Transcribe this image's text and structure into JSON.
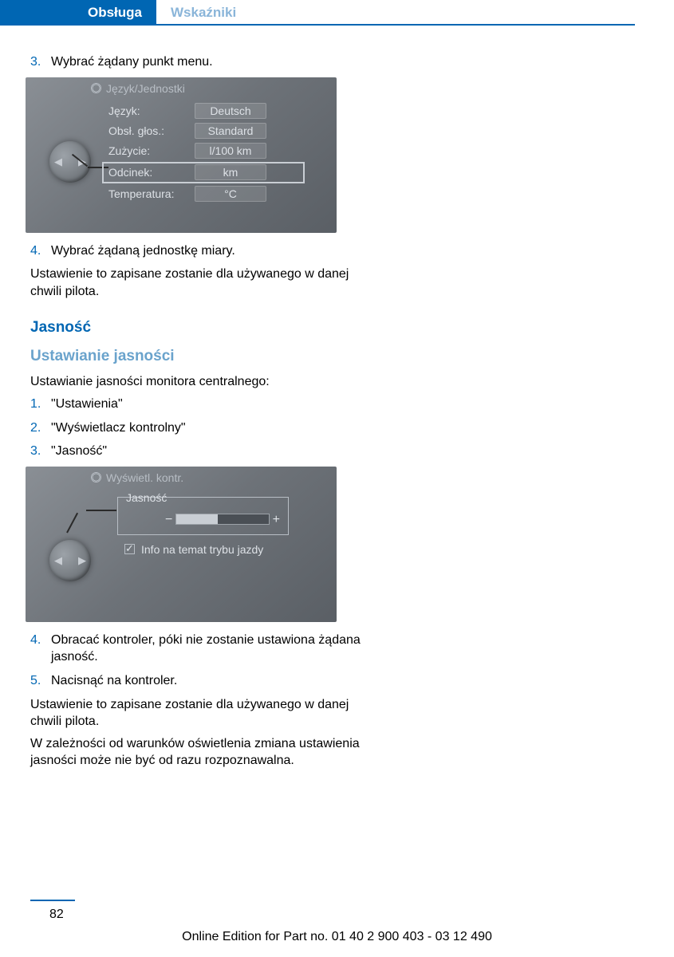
{
  "header": {
    "tab_active": "Obsługa",
    "tab_inactive": "Wskaźniki"
  },
  "step3": {
    "num": "3.",
    "text": "Wybrać żądany punkt menu."
  },
  "screen1": {
    "title": "Język/Jednostki",
    "rows": [
      {
        "label": "Język:",
        "value": "Deutsch"
      },
      {
        "label": "Obsł. głos.:",
        "value": "Standard"
      },
      {
        "label": "Zużycie:",
        "value": "l/100 km"
      },
      {
        "label": "Odcinek:",
        "value": "km"
      },
      {
        "label": "Temperatura:",
        "value": "°C"
      }
    ]
  },
  "step4": {
    "num": "4.",
    "text": "Wybrać żądaną jednostkę miary."
  },
  "para1": "Ustawienie to zapisane zostanie dla używanego w danej chwili pilota.",
  "h1": "Jasność",
  "h2": "Ustawianie jasności",
  "para2": "Ustawianie jasności monitora centralnego:",
  "list2": [
    {
      "num": "1.",
      "text": "\"Ustawienia\""
    },
    {
      "num": "2.",
      "text": "\"Wyświetlacz kontrolny\""
    },
    {
      "num": "3.",
      "text": "\"Jasność\""
    }
  ],
  "screen2": {
    "title": "Wyświetl. kontr.",
    "brightness_label": "Jasność",
    "info": "Info na temat trybu jazdy"
  },
  "step4b": {
    "num": "4.",
    "text": "Obracać kontroler, póki nie zostanie ustawiona żądana jasność."
  },
  "step5": {
    "num": "5.",
    "text": "Nacisnąć na kontroler."
  },
  "para3": "Ustawienie to zapisane zostanie dla używanego w danej chwili pilota.",
  "para4": "W zależności od warunków oświetlenia zmiana ustawienia jasności może nie być od razu rozpoznawalna.",
  "footer": {
    "page": "82",
    "text": "Online Edition for Part no. 01 40 2 900 403 - 03 12 490"
  }
}
